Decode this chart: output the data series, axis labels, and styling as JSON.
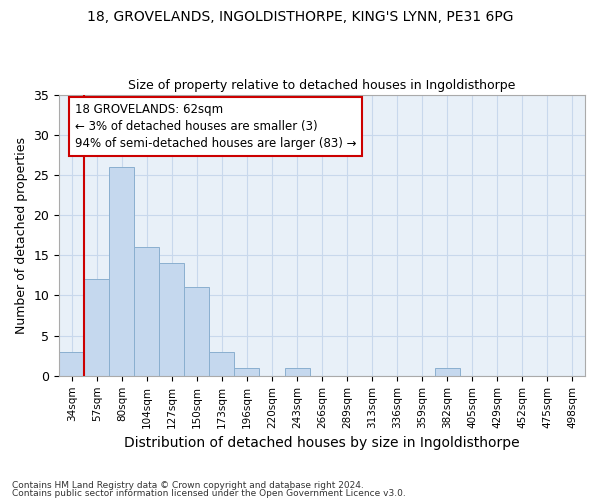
{
  "title1": "18, GROVELANDS, INGOLDISTHORPE, KING'S LYNN, PE31 6PG",
  "title2": "Size of property relative to detached houses in Ingoldisthorpe",
  "xlabel": "Distribution of detached houses by size in Ingoldisthorpe",
  "ylabel": "Number of detached properties",
  "footnote1": "Contains HM Land Registry data © Crown copyright and database right 2024.",
  "footnote2": "Contains public sector information licensed under the Open Government Licence v3.0.",
  "bin_labels": [
    "34sqm",
    "57sqm",
    "80sqm",
    "104sqm",
    "127sqm",
    "150sqm",
    "173sqm",
    "196sqm",
    "220sqm",
    "243sqm",
    "266sqm",
    "289sqm",
    "313sqm",
    "336sqm",
    "359sqm",
    "382sqm",
    "405sqm",
    "429sqm",
    "452sqm",
    "475sqm",
    "498sqm"
  ],
  "bar_values": [
    3,
    12,
    26,
    16,
    14,
    11,
    3,
    1,
    0,
    1,
    0,
    0,
    0,
    0,
    0,
    1,
    0,
    0,
    0,
    0,
    0
  ],
  "bar_color": "#c5d8ee",
  "bar_edge_color": "#8aafcf",
  "grid_color": "#c8d8ec",
  "bg_color": "#e8f0f8",
  "property_size": 62,
  "annotation_text": "18 GROVELANDS: 62sqm\n← 3% of detached houses are smaller (3)\n94% of semi-detached houses are larger (83) →",
  "annotation_box_color": "#ffffff",
  "annotation_border_color": "#cc0000",
  "ylim": [
    0,
    35
  ],
  "yticks": [
    0,
    5,
    10,
    15,
    20,
    25,
    30,
    35
  ]
}
